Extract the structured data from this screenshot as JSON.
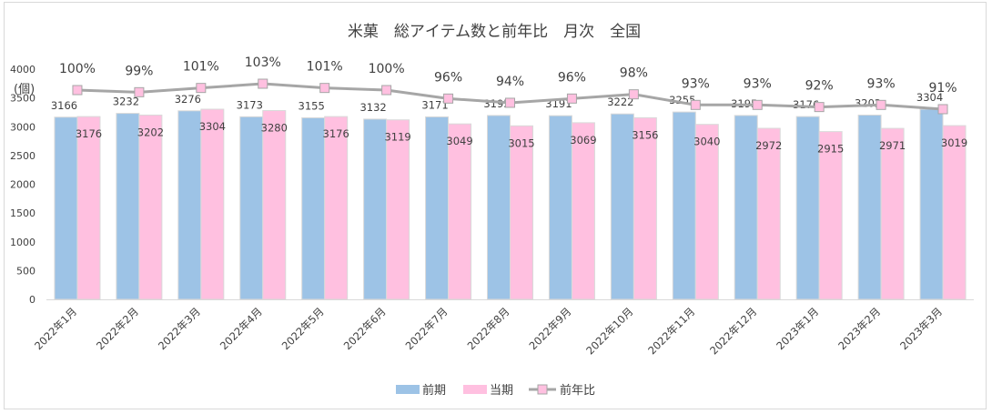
{
  "chart_data": {
    "type": "bar",
    "title": "米菓　総アイテム数と前年比　月次　全国",
    "ylabel": "(個)",
    "ylim": [
      0,
      4000
    ],
    "yticks": [
      0,
      500,
      1000,
      1500,
      2000,
      2500,
      3000,
      3500,
      4000
    ],
    "grid": false,
    "legend_position": "bottom",
    "categories": [
      "2022年1月",
      "2022年2月",
      "2022年3月",
      "2022年4月",
      "2022年5月",
      "2022年6月",
      "2022年7月",
      "2022年8月",
      "2022年9月",
      "2022年10月",
      "2022年11月",
      "2022年12月",
      "2023年1月",
      "2023年2月",
      "2023年3月"
    ],
    "series": [
      {
        "name": "前期",
        "type": "bar",
        "color": "#9dc3e6",
        "values": [
          3166,
          3232,
          3276,
          3173,
          3155,
          3132,
          3171,
          3195,
          3191,
          3222,
          3255,
          3195,
          3176,
          3202,
          3304
        ]
      },
      {
        "name": "当期",
        "type": "bar",
        "color": "#ffc0e0",
        "values": [
          3176,
          3202,
          3304,
          3280,
          3176,
          3119,
          3049,
          3015,
          3069,
          3156,
          3040,
          2972,
          2915,
          2971,
          3019
        ]
      },
      {
        "name": "前年比",
        "type": "line",
        "color": "#a6a6a6",
        "marker_color": "#ffc0e0",
        "axis": "secondary",
        "values": [
          100,
          99,
          101,
          103,
          101,
          100,
          96,
          94,
          96,
          98,
          93,
          93,
          92,
          93,
          91
        ],
        "labels": [
          "100%",
          "99%",
          "101%",
          "103%",
          "101%",
          "100%",
          "96%",
          "94%",
          "96%",
          "98%",
          "93%",
          "93%",
          "92%",
          "93%",
          "91%"
        ]
      }
    ]
  }
}
